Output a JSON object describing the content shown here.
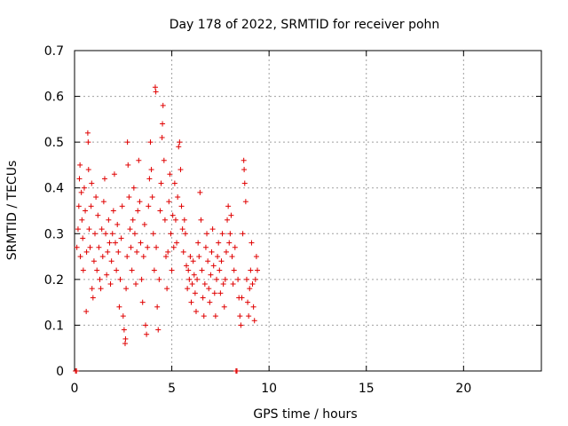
{
  "chart_data": {
    "type": "scatter",
    "title": "Day 178 of 2022, SRMTID for receiver pohn",
    "xlabel": "GPS time / hours",
    "ylabel": "SRMTID / TECUs",
    "xlim": [
      0,
      24
    ],
    "ylim": [
      0,
      0.7
    ],
    "xticks": [
      0,
      5,
      10,
      15,
      20
    ],
    "yticks": [
      0,
      0.1,
      0.2,
      0.3,
      0.4,
      0.5,
      0.6,
      0.7
    ],
    "xtick_labels": [
      "0",
      "5",
      "10",
      "15",
      "20"
    ],
    "ytick_labels": [
      "0",
      "0.1",
      "0.2",
      "0.3",
      "0.4",
      "0.5",
      "0.6",
      "0.7"
    ],
    "grid": true,
    "marker": "+",
    "color": "#e00000",
    "series": [
      {
        "name": "SRMTID",
        "points": [
          [
            0.05,
            0.0
          ],
          [
            0.1,
            0.0
          ],
          [
            0.12,
            0.27
          ],
          [
            0.18,
            0.31
          ],
          [
            0.22,
            0.36
          ],
          [
            0.25,
            0.42
          ],
          [
            0.28,
            0.45
          ],
          [
            0.3,
            0.25
          ],
          [
            0.35,
            0.39
          ],
          [
            0.38,
            0.33
          ],
          [
            0.42,
            0.29
          ],
          [
            0.45,
            0.22
          ],
          [
            0.5,
            0.4
          ],
          [
            0.55,
            0.35
          ],
          [
            0.6,
            0.13
          ],
          [
            0.62,
            0.26
          ],
          [
            0.68,
            0.52
          ],
          [
            0.7,
            0.5
          ],
          [
            0.72,
            0.44
          ],
          [
            0.75,
            0.31
          ],
          [
            0.8,
            0.27
          ],
          [
            0.85,
            0.36
          ],
          [
            0.88,
            0.41
          ],
          [
            0.9,
            0.18
          ],
          [
            0.95,
            0.16
          ],
          [
            1.0,
            0.24
          ],
          [
            1.05,
            0.3
          ],
          [
            1.1,
            0.38
          ],
          [
            1.15,
            0.22
          ],
          [
            1.2,
            0.34
          ],
          [
            1.25,
            0.27
          ],
          [
            1.3,
            0.2
          ],
          [
            1.35,
            0.18
          ],
          [
            1.4,
            0.31
          ],
          [
            1.45,
            0.25
          ],
          [
            1.5,
            0.37
          ],
          [
            1.55,
            0.42
          ],
          [
            1.6,
            0.3
          ],
          [
            1.65,
            0.21
          ],
          [
            1.7,
            0.26
          ],
          [
            1.75,
            0.33
          ],
          [
            1.8,
            0.28
          ],
          [
            1.85,
            0.19
          ],
          [
            1.9,
            0.24
          ],
          [
            1.95,
            0.3
          ],
          [
            2.0,
            0.35
          ],
          [
            2.05,
            0.43
          ],
          [
            2.1,
            0.28
          ],
          [
            2.15,
            0.22
          ],
          [
            2.2,
            0.32
          ],
          [
            2.25,
            0.26
          ],
          [
            2.3,
            0.14
          ],
          [
            2.35,
            0.2
          ],
          [
            2.4,
            0.29
          ],
          [
            2.45,
            0.36
          ],
          [
            2.5,
            0.12
          ],
          [
            2.55,
            0.09
          ],
          [
            2.6,
            0.06
          ],
          [
            2.62,
            0.07
          ],
          [
            2.65,
            0.18
          ],
          [
            2.7,
            0.25
          ],
          [
            2.72,
            0.5
          ],
          [
            2.75,
            0.45
          ],
          [
            2.8,
            0.38
          ],
          [
            2.85,
            0.31
          ],
          [
            2.9,
            0.27
          ],
          [
            2.95,
            0.22
          ],
          [
            3.0,
            0.33
          ],
          [
            3.05,
            0.4
          ],
          [
            3.1,
            0.3
          ],
          [
            3.15,
            0.19
          ],
          [
            3.2,
            0.26
          ],
          [
            3.25,
            0.35
          ],
          [
            3.3,
            0.46
          ],
          [
            3.35,
            0.37
          ],
          [
            3.4,
            0.28
          ],
          [
            3.45,
            0.2
          ],
          [
            3.5,
            0.15
          ],
          [
            3.55,
            0.25
          ],
          [
            3.6,
            0.32
          ],
          [
            3.65,
            0.1
          ],
          [
            3.7,
            0.08
          ],
          [
            3.75,
            0.27
          ],
          [
            3.8,
            0.36
          ],
          [
            3.85,
            0.42
          ],
          [
            3.9,
            0.5
          ],
          [
            3.95,
            0.44
          ],
          [
            4.0,
            0.38
          ],
          [
            4.05,
            0.3
          ],
          [
            4.1,
            0.22
          ],
          [
            4.15,
            0.62
          ],
          [
            4.18,
            0.61
          ],
          [
            4.2,
            0.27
          ],
          [
            4.25,
            0.14
          ],
          [
            4.3,
            0.09
          ],
          [
            4.35,
            0.2
          ],
          [
            4.4,
            0.35
          ],
          [
            4.45,
            0.41
          ],
          [
            4.5,
            0.51
          ],
          [
            4.52,
            0.54
          ],
          [
            4.55,
            0.58
          ],
          [
            4.6,
            0.46
          ],
          [
            4.65,
            0.33
          ],
          [
            4.7,
            0.25
          ],
          [
            4.75,
            0.18
          ],
          [
            4.8,
            0.26
          ],
          [
            4.85,
            0.37
          ],
          [
            4.9,
            0.43
          ],
          [
            4.95,
            0.3
          ],
          [
            5.0,
            0.22
          ],
          [
            5.05,
            0.34
          ],
          [
            5.1,
            0.27
          ],
          [
            5.15,
            0.41
          ],
          [
            5.2,
            0.33
          ],
          [
            5.25,
            0.28
          ],
          [
            5.3,
            0.38
          ],
          [
            5.35,
            0.49
          ],
          [
            5.4,
            0.5
          ],
          [
            5.45,
            0.44
          ],
          [
            5.5,
            0.36
          ],
          [
            5.55,
            0.31
          ],
          [
            5.6,
            0.26
          ],
          [
            5.65,
            0.33
          ],
          [
            5.7,
            0.3
          ],
          [
            5.75,
            0.23
          ],
          [
            5.8,
            0.18
          ],
          [
            5.85,
            0.22
          ],
          [
            5.9,
            0.2
          ],
          [
            5.95,
            0.25
          ],
          [
            6.0,
            0.15
          ],
          [
            6.05,
            0.19
          ],
          [
            6.1,
            0.24
          ],
          [
            6.15,
            0.21
          ],
          [
            6.2,
            0.17
          ],
          [
            6.25,
            0.13
          ],
          [
            6.3,
            0.2
          ],
          [
            6.35,
            0.28
          ],
          [
            6.4,
            0.25
          ],
          [
            6.45,
            0.39
          ],
          [
            6.5,
            0.33
          ],
          [
            6.55,
            0.22
          ],
          [
            6.6,
            0.16
          ],
          [
            6.65,
            0.12
          ],
          [
            6.7,
            0.19
          ],
          [
            6.75,
            0.27
          ],
          [
            6.8,
            0.3
          ],
          [
            6.85,
            0.24
          ],
          [
            6.9,
            0.18
          ],
          [
            6.95,
            0.15
          ],
          [
            7.0,
            0.21
          ],
          [
            7.05,
            0.26
          ],
          [
            7.1,
            0.31
          ],
          [
            7.15,
            0.23
          ],
          [
            7.2,
            0.17
          ],
          [
            7.25,
            0.12
          ],
          [
            7.3,
            0.2
          ],
          [
            7.35,
            0.25
          ],
          [
            7.4,
            0.28
          ],
          [
            7.45,
            0.22
          ],
          [
            7.5,
            0.17
          ],
          [
            7.55,
            0.24
          ],
          [
            7.6,
            0.3
          ],
          [
            7.65,
            0.19
          ],
          [
            7.7,
            0.14
          ],
          [
            7.75,
            0.2
          ],
          [
            7.8,
            0.26
          ],
          [
            7.85,
            0.33
          ],
          [
            7.9,
            0.36
          ],
          [
            7.95,
            0.28
          ],
          [
            8.0,
            0.3
          ],
          [
            8.05,
            0.34
          ],
          [
            8.1,
            0.25
          ],
          [
            8.15,
            0.19
          ],
          [
            8.2,
            0.22
          ],
          [
            8.25,
            0.27
          ],
          [
            8.3,
            0.0
          ],
          [
            8.35,
            0.0
          ],
          [
            8.4,
            0.2
          ],
          [
            8.45,
            0.16
          ],
          [
            8.5,
            0.12
          ],
          [
            8.55,
            0.1
          ],
          [
            8.6,
            0.16
          ],
          [
            8.65,
            0.3
          ],
          [
            8.7,
            0.46
          ],
          [
            8.72,
            0.44
          ],
          [
            8.75,
            0.41
          ],
          [
            8.8,
            0.37
          ],
          [
            8.85,
            0.2
          ],
          [
            8.9,
            0.15
          ],
          [
            8.95,
            0.12
          ],
          [
            9.0,
            0.18
          ],
          [
            9.05,
            0.22
          ],
          [
            9.1,
            0.28
          ],
          [
            9.15,
            0.19
          ],
          [
            9.2,
            0.14
          ],
          [
            9.25,
            0.11
          ],
          [
            9.3,
            0.2
          ],
          [
            9.35,
            0.25
          ],
          [
            9.4,
            0.22
          ]
        ]
      }
    ]
  }
}
